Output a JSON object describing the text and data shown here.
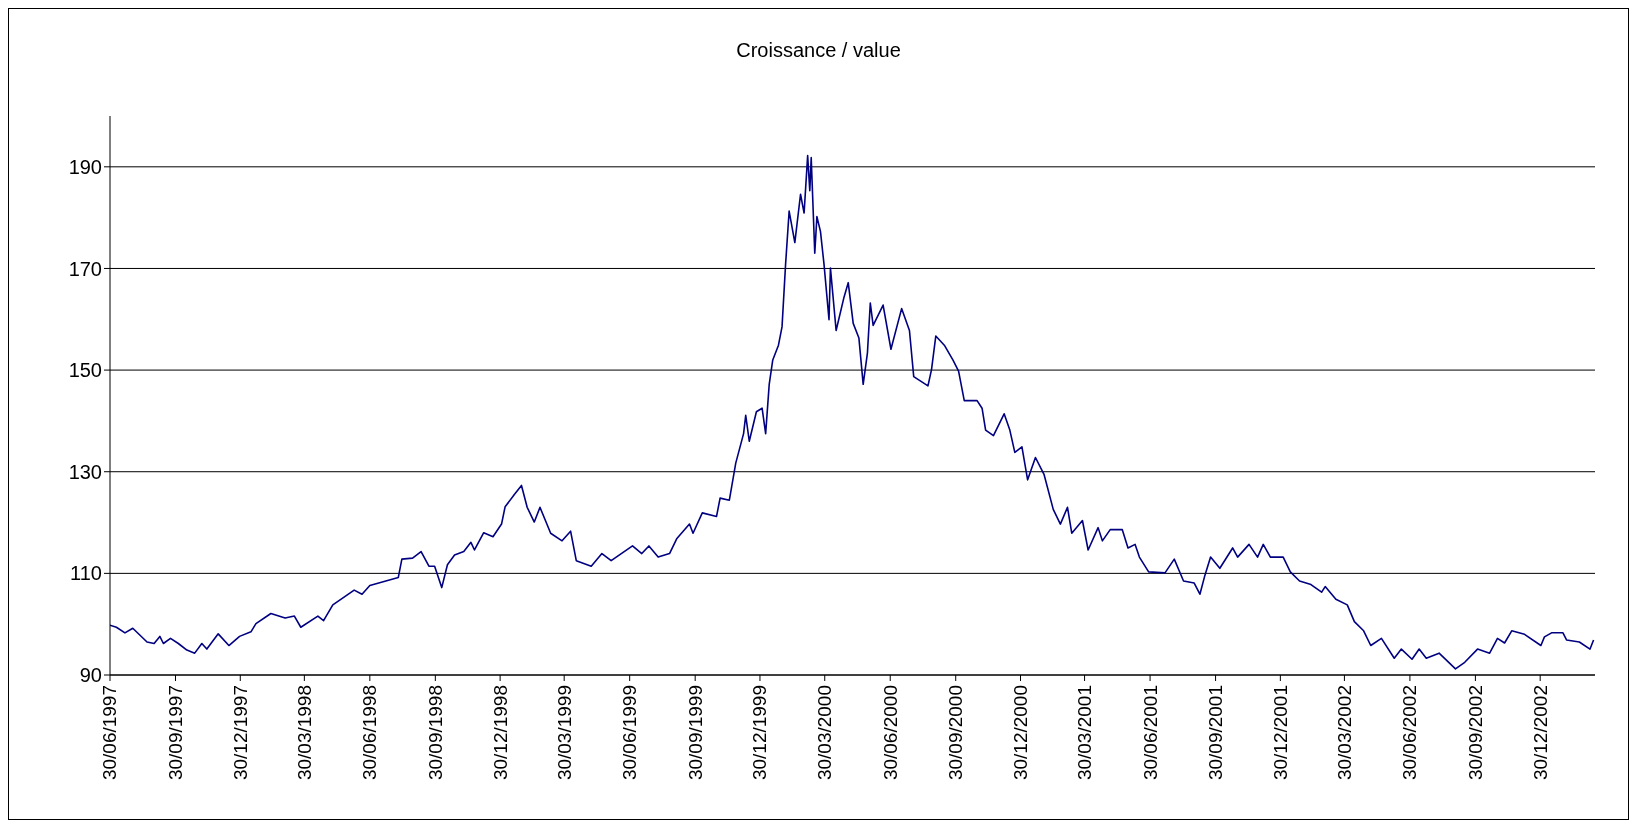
{
  "chart_data": {
    "type": "line",
    "title": "Croissance / value",
    "x": [
      "1997-06-30",
      "1997-07-09",
      "1997-07-21",
      "1997-08-01",
      "1997-08-21",
      "1997-08-31",
      "1997-09-08",
      "1997-09-13",
      "1997-09-23",
      "1997-10-04",
      "1997-10-16",
      "1997-10-27",
      "1997-11-06",
      "1997-11-13",
      "1997-11-29",
      "1997-12-14",
      "1997-12-29",
      "1998-01-14",
      "1998-01-21",
      "1998-02-11",
      "1998-03-03",
      "1998-03-16",
      "1998-03-25",
      "1998-04-18",
      "1998-04-26",
      "1998-05-09",
      "1998-06-08",
      "1998-06-19",
      "1998-06-30",
      "1998-07-30",
      "1998-08-09",
      "1998-08-14",
      "1998-08-29",
      "1998-09-10",
      "1998-09-21",
      "1998-09-29",
      "1998-10-09",
      "1998-10-17",
      "1998-10-27",
      "1998-11-09",
      "1998-11-19",
      "1998-11-24",
      "1998-12-07",
      "1998-12-20",
      "1999-01-01",
      "1999-01-06",
      "1999-01-19",
      "1999-01-29",
      "1999-02-06",
      "1999-02-16",
      "1999-02-24",
      "1999-03-11",
      "1999-03-27",
      "1999-04-08",
      "1999-04-16",
      "1999-05-07",
      "1999-05-22",
      "1999-06-04",
      "1999-07-04",
      "1999-07-17",
      "1999-07-27",
      "1999-08-09",
      "1999-08-25",
      "1999-09-04",
      "1999-09-22",
      "1999-09-27",
      "1999-10-10",
      "1999-10-30",
      "1999-11-04",
      "1999-11-17",
      "1999-11-26",
      "1999-12-07",
      "1999-12-10",
      "1999-12-15",
      "1999-12-25",
      "2000-01-02",
      "2000-01-07",
      "2000-01-12",
      "2000-01-17",
      "2000-01-25",
      "2000-01-30",
      "2000-02-04",
      "2000-02-09",
      "2000-02-17",
      "2000-02-25",
      "2000-03-01",
      "2000-03-06",
      "2000-03-09",
      "2000-03-11",
      "2000-03-16",
      "2000-03-19",
      "2000-03-24",
      "2000-03-29",
      "2000-04-05",
      "2000-04-07",
      "2000-04-15",
      "2000-04-26",
      "2000-05-02",
      "2000-05-09",
      "2000-05-17",
      "2000-05-23",
      "2000-05-29",
      "2000-06-02",
      "2000-06-06",
      "2000-06-20",
      "2000-07-01",
      "2000-07-16",
      "2000-07-27",
      "2000-08-02",
      "2000-08-22",
      "2000-08-27",
      "2000-09-02",
      "2000-09-14",
      "2000-09-26",
      "2000-10-04",
      "2000-10-12",
      "2000-10-30",
      "2000-11-06",
      "2000-11-11",
      "2000-11-22",
      "2000-12-07",
      "2000-12-15",
      "2000-12-22",
      "2001-01-01",
      "2001-01-09",
      "2001-01-20",
      "2001-02-01",
      "2001-02-14",
      "2001-02-24",
      "2001-03-06",
      "2001-03-12",
      "2001-03-27",
      "2001-04-04",
      "2001-04-18",
      "2001-04-24",
      "2001-05-05",
      "2001-05-22",
      "2001-05-30",
      "2001-06-09",
      "2001-06-15",
      "2001-06-28",
      "2001-07-21",
      "2001-08-03",
      "2001-08-16",
      "2001-08-31",
      "2001-09-08",
      "2001-09-15",
      "2001-09-23",
      "2001-10-06",
      "2001-10-24",
      "2001-10-31",
      "2001-11-16",
      "2001-11-28",
      "2001-12-06",
      "2001-12-16",
      "2002-01-03",
      "2002-01-13",
      "2002-01-26",
      "2002-02-11",
      "2002-02-26",
      "2002-03-03",
      "2002-03-18",
      "2002-04-03",
      "2002-04-13",
      "2002-04-26",
      "2002-05-06",
      "2002-05-21",
      "2002-06-08",
      "2002-06-18",
      "2002-07-03",
      "2002-07-13",
      "2002-07-23",
      "2002-08-10",
      "2002-09-02",
      "2002-09-15",
      "2002-10-03",
      "2002-10-20",
      "2002-10-31",
      "2002-11-10",
      "2002-11-20",
      "2002-12-08",
      "2002-12-31",
      "2003-01-05",
      "2003-01-15",
      "2003-01-31",
      "2003-02-05",
      "2003-02-23",
      "2003-03-10",
      "2003-03-15"
    ],
    "series": [
      {
        "color": "#000080",
        "values": [
          99.8,
          99.4,
          98.3,
          99.2,
          96.5,
          96.2,
          97.6,
          96.2,
          97.2,
          96.2,
          94.9,
          94.3,
          96.2,
          95.1,
          98.1,
          95.8,
          97.6,
          98.5,
          100.1,
          102.1,
          101.2,
          101.6,
          99.4,
          101.6,
          100.7,
          103.8,
          106.7,
          105.9,
          107.6,
          108.8,
          109.2,
          112.8,
          113.0,
          114.3,
          111.4,
          111.4,
          107.2,
          111.7,
          113.6,
          114.3,
          116.1,
          114.6,
          118.0,
          117.2,
          119.7,
          123.1,
          125.5,
          127.3,
          123.0,
          120.1,
          123.0,
          117.9,
          116.4,
          118.3,
          112.5,
          111.4,
          113.9,
          112.5,
          115.4,
          113.9,
          115.4,
          113.2,
          113.9,
          116.8,
          119.7,
          117.9,
          121.9,
          121.2,
          124.8,
          124.4,
          131.7,
          137.5,
          141.1,
          136.0,
          141.8,
          142.5,
          137.5,
          147.2,
          152.0,
          154.9,
          158.5,
          170.8,
          181.3,
          175.1,
          184.6,
          180.9,
          192.2,
          185.3,
          191.8,
          173.0,
          180.2,
          177.3,
          170.8,
          159.9,
          170.1,
          157.8,
          164.3,
          167.2,
          159.2,
          156.3,
          147.2,
          153.4,
          163.2,
          158.8,
          162.8,
          154.1,
          162.1,
          157.8,
          148.7,
          146.9,
          150.1,
          156.7,
          154.9,
          152.0,
          149.8,
          144.0,
          144.0,
          142.5,
          138.2,
          137.1,
          141.4,
          138.2,
          133.8,
          134.9,
          128.4,
          132.8,
          129.5,
          122.6,
          119.7,
          123.0,
          117.9,
          120.4,
          114.6,
          119.0,
          116.4,
          118.6,
          118.6,
          115.0,
          115.7,
          113.2,
          110.3,
          110.1,
          112.8,
          108.5,
          108.1,
          105.9,
          109.6,
          113.2,
          111.0,
          115.0,
          113.2,
          115.7,
          113.2,
          115.7,
          113.2,
          113.2,
          110.3,
          108.5,
          107.8,
          106.3,
          107.4,
          104.9,
          103.8,
          100.5,
          98.7,
          95.8,
          97.2,
          93.3,
          95.1,
          93.1,
          95.1,
          93.3,
          94.3,
          91.2,
          92.5,
          95.1,
          94.3,
          97.2,
          96.3,
          98.7,
          98.0,
          95.8,
          97.5,
          98.3,
          98.3,
          96.9,
          96.5,
          95.1,
          96.9
        ]
      }
    ],
    "xlim": [
      "1997-06-30",
      "2003-03-17"
    ],
    "xticks": [
      {
        "value": "1997-06-30",
        "label": "30/06/1997"
      },
      {
        "value": "1997-09-30",
        "label": "30/09/1997"
      },
      {
        "value": "1997-12-30",
        "label": "30/12/1997"
      },
      {
        "value": "1998-03-30",
        "label": "30/03/1998"
      },
      {
        "value": "1998-06-30",
        "label": "30/06/1998"
      },
      {
        "value": "1998-09-30",
        "label": "30/09/1998"
      },
      {
        "value": "1998-12-30",
        "label": "30/12/1998"
      },
      {
        "value": "1999-03-30",
        "label": "30/03/1999"
      },
      {
        "value": "1999-06-30",
        "label": "30/06/1999"
      },
      {
        "value": "1999-09-30",
        "label": "30/09/1999"
      },
      {
        "value": "1999-12-30",
        "label": "30/12/1999"
      },
      {
        "value": "2000-03-30",
        "label": "30/03/2000"
      },
      {
        "value": "2000-06-30",
        "label": "30/06/2000"
      },
      {
        "value": "2000-09-30",
        "label": "30/09/2000"
      },
      {
        "value": "2000-12-30",
        "label": "30/12/2000"
      },
      {
        "value": "2001-03-30",
        "label": "30/03/2001"
      },
      {
        "value": "2001-06-30",
        "label": "30/06/2001"
      },
      {
        "value": "2001-09-30",
        "label": "30/09/2001"
      },
      {
        "value": "2001-12-30",
        "label": "30/12/2001"
      },
      {
        "value": "2002-03-30",
        "label": "30/03/2002"
      },
      {
        "value": "2002-06-30",
        "label": "30/06/2002"
      },
      {
        "value": "2002-09-30",
        "label": "30/09/2002"
      },
      {
        "value": "2002-12-30",
        "label": "30/12/2002"
      }
    ],
    "ylim": [
      90,
      200
    ],
    "yticks": [
      90,
      110,
      130,
      150,
      170,
      190
    ],
    "grid": "y",
    "legend": false,
    "marker": "none",
    "line_style": "solid"
  }
}
